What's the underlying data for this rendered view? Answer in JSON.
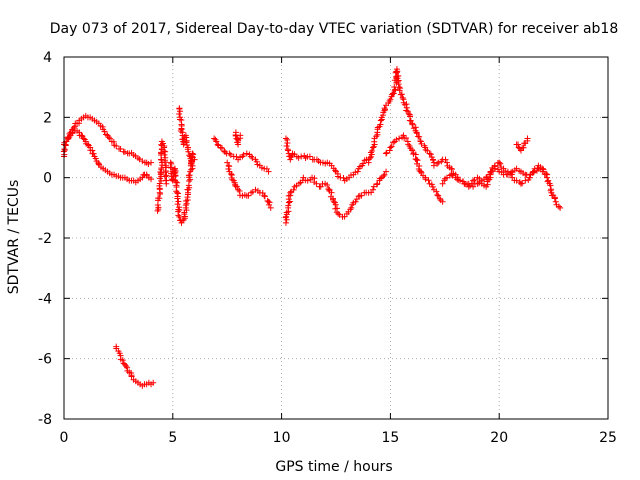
{
  "chart_data": {
    "type": "scatter",
    "title": "Day 073 of 2017, Sidereal Day-to-day VTEC variation (SDTVAR) for receiver ab18",
    "xlabel": "GPS time / hours",
    "ylabel": "SDTVAR / TECUs",
    "xlim": [
      0,
      25
    ],
    "ylim": [
      -8,
      4
    ],
    "xticks": [
      0,
      5,
      10,
      15,
      20,
      25
    ],
    "yticks": [
      -8,
      -6,
      -4,
      -2,
      0,
      2,
      4
    ],
    "grid": true,
    "marker": "+",
    "color": "#ff0000",
    "series": [
      {
        "name": "SDTVAR",
        "segments": [
          {
            "x": [
              0.0,
              0.1,
              0.2,
              0.3,
              0.4,
              0.5,
              0.6,
              0.7,
              0.8,
              0.9,
              1.0,
              1.1,
              1.2,
              1.3,
              1.4,
              1.5
            ],
            "y": [
              0.7,
              1.2,
              1.35,
              1.5,
              1.6,
              1.7,
              1.8,
              1.9,
              1.95,
              2.0,
              2.05,
              2.0,
              2.0,
              1.95,
              1.9,
              1.85
            ]
          },
          {
            "x": [
              0.0,
              0.1,
              0.2,
              0.3,
              0.4,
              0.5,
              0.6,
              0.7,
              0.8,
              0.9,
              1.0,
              1.1,
              1.2,
              1.3,
              1.4,
              1.5,
              1.6,
              1.7,
              1.8,
              1.9,
              2.0,
              2.1,
              2.2,
              2.3,
              2.4,
              2.5,
              2.6,
              2.7,
              2.8,
              2.9,
              3.0,
              3.1,
              3.2,
              3.3,
              3.4,
              3.5,
              3.6,
              3.7,
              3.8,
              3.9,
              4.0
            ],
            "y": [
              1.1,
              1.2,
              1.3,
              1.4,
              1.5,
              1.55,
              1.55,
              1.5,
              1.4,
              1.3,
              1.2,
              1.1,
              1.0,
              0.9,
              0.7,
              0.55,
              0.45,
              0.35,
              0.3,
              0.25,
              0.2,
              0.15,
              0.1,
              0.1,
              0.05,
              0.05,
              0.0,
              0.0,
              0.0,
              -0.05,
              -0.1,
              -0.1,
              -0.1,
              -0.15,
              -0.1,
              -0.05,
              0.0,
              0.1,
              0.1,
              0.0,
              -0.05
            ]
          },
          {
            "x": [
              1.6,
              1.8,
              2.0,
              2.2,
              2.4,
              2.6,
              2.8,
              3.0,
              3.2,
              3.4,
              3.6,
              3.8,
              4.0
            ],
            "y": [
              1.8,
              1.6,
              1.4,
              1.2,
              1.05,
              0.95,
              0.85,
              0.8,
              0.75,
              0.65,
              0.55,
              0.5,
              0.5
            ]
          },
          {
            "x": [
              2.4,
              2.5,
              2.6,
              2.7,
              2.8,
              2.9,
              3.0,
              3.1,
              3.2,
              3.3,
              3.4,
              3.5,
              3.6,
              3.7,
              3.8,
              3.9,
              4.0,
              4.1
            ],
            "y": [
              -5.6,
              -5.75,
              -5.9,
              -6.05,
              -6.2,
              -6.3,
              -6.45,
              -6.55,
              -6.7,
              -6.75,
              -6.8,
              -6.85,
              -6.9,
              -6.85,
              -6.85,
              -6.8,
              -6.85,
              -6.8
            ]
          },
          {
            "x": [
              4.3,
              4.4,
              4.5,
              4.5,
              4.6,
              4.7
            ],
            "y": [
              -1.1,
              -0.5,
              0.5,
              1.2,
              1.0,
              -0.2
            ]
          },
          {
            "x": [
              4.9,
              5.0,
              5.1,
              5.2,
              5.3,
              5.4,
              5.5,
              5.6,
              5.7,
              5.8,
              5.9,
              6.0
            ],
            "y": [
              0.5,
              -0.1,
              0.3,
              -0.5,
              -1.3,
              -1.5,
              -1.4,
              -1.0,
              -0.5,
              0.2,
              0.8,
              0.6
            ]
          },
          {
            "x": [
              5.3,
              5.4,
              5.5,
              5.6,
              5.7,
              5.8,
              5.9
            ],
            "y": [
              2.3,
              1.6,
              1.1,
              1.4,
              1.0,
              0.7,
              0.3
            ]
          },
          {
            "x": [
              6.9,
              7.0,
              7.2,
              7.4,
              7.6,
              7.8,
              8.0,
              8.2,
              8.4,
              8.6,
              8.8,
              9.0,
              9.2,
              9.4
            ],
            "y": [
              1.3,
              1.2,
              1.0,
              0.85,
              0.8,
              0.7,
              0.6,
              0.7,
              0.8,
              0.7,
              0.6,
              0.4,
              0.3,
              0.2
            ]
          },
          {
            "x": [
              7.5,
              7.6,
              7.8,
              8.0,
              8.2,
              8.4,
              8.6,
              8.8,
              9.0,
              9.2,
              9.4,
              9.5
            ],
            "y": [
              0.5,
              0.2,
              -0.1,
              -0.4,
              -0.6,
              -0.6,
              -0.5,
              -0.4,
              -0.5,
              -0.6,
              -0.8,
              -1.0
            ]
          },
          {
            "x": [
              7.9,
              8.0,
              8.1
            ],
            "y": [
              1.5,
              1.1,
              1.4
            ]
          },
          {
            "x": [
              10.2,
              10.3,
              10.4,
              10.5,
              10.7,
              10.9,
              11.1,
              11.3,
              11.5,
              11.7,
              11.9,
              12.1,
              12.3,
              12.5,
              12.7,
              12.9,
              13.1,
              13.3,
              13.5,
              13.7,
              13.9
            ],
            "y": [
              1.3,
              0.9,
              0.6,
              0.8,
              0.7,
              0.7,
              0.65,
              0.7,
              0.6,
              0.55,
              0.5,
              0.5,
              0.4,
              0.2,
              0.0,
              -0.1,
              0.0,
              0.1,
              0.2,
              0.4,
              0.6
            ]
          },
          {
            "x": [
              10.2,
              10.3,
              10.4,
              10.6,
              10.8,
              11.0,
              11.2,
              11.4,
              11.6,
              11.8,
              12.0,
              12.2,
              12.4,
              12.6,
              12.8,
              13.0,
              13.2,
              13.4,
              13.6,
              13.8,
              14.0,
              14.2,
              14.4,
              14.6,
              14.8
            ],
            "y": [
              -1.5,
              -1.0,
              -0.5,
              -0.3,
              -0.2,
              0.0,
              -0.1,
              0.0,
              -0.2,
              -0.3,
              -0.2,
              -0.4,
              -0.8,
              -1.2,
              -1.3,
              -1.2,
              -1.0,
              -0.8,
              -0.6,
              -0.5,
              -0.5,
              -0.4,
              -0.2,
              0.0,
              0.2
            ]
          },
          {
            "x": [
              14.0,
              14.2,
              14.4,
              14.6,
              14.8,
              15.0,
              15.2,
              15.3,
              15.4,
              15.6,
              15.8,
              16.0,
              16.2,
              16.4,
              16.6,
              16.8,
              17.0
            ],
            "y": [
              0.5,
              1.0,
              1.5,
              2.0,
              2.4,
              2.6,
              2.9,
              3.6,
              3.0,
              2.6,
              2.2,
              1.8,
              1.5,
              1.2,
              1.0,
              0.8,
              0.5
            ]
          },
          {
            "x": [
              14.8,
              15.0,
              15.2,
              15.4,
              15.6,
              15.8,
              16.0,
              16.2,
              16.4,
              16.6,
              16.8,
              17.0,
              17.2,
              17.4
            ],
            "y": [
              0.8,
              1.0,
              1.2,
              1.3,
              1.4,
              1.2,
              0.9,
              0.6,
              0.2,
              0.0,
              -0.2,
              -0.4,
              -0.6,
              -0.8
            ]
          },
          {
            "x": [
              17.0,
              17.2,
              17.4,
              17.6,
              17.8,
              18.0,
              18.2,
              18.4,
              18.6,
              18.8,
              19.0,
              19.2,
              19.4,
              19.6,
              19.8,
              20.0,
              20.2,
              20.4,
              20.6,
              20.8,
              21.0,
              21.2,
              21.4,
              21.6,
              21.8,
              22.0,
              22.2,
              22.4,
              22.6,
              22.8
            ],
            "y": [
              0.4,
              0.5,
              0.6,
              0.5,
              0.3,
              0.1,
              -0.1,
              -0.2,
              -0.2,
              -0.1,
              0.0,
              -0.2,
              -0.3,
              0.1,
              0.4,
              0.5,
              0.3,
              0.2,
              0.0,
              -0.1,
              -0.2,
              -0.1,
              0.0,
              0.2,
              0.3,
              0.2,
              0.0,
              -0.5,
              -0.8,
              -1.0
            ]
          },
          {
            "x": [
              17.4,
              17.6,
              17.8,
              18.0,
              18.2,
              18.4,
              18.6,
              18.8,
              19.0,
              19.2,
              19.4,
              19.6,
              19.8,
              20.0,
              20.2,
              20.4,
              20.6,
              20.8,
              21.0,
              21.2,
              21.4,
              21.6,
              21.8,
              22.0,
              22.2
            ],
            "y": [
              -0.2,
              0.0,
              0.1,
              0.0,
              -0.1,
              -0.2,
              -0.3,
              -0.3,
              -0.2,
              -0.1,
              0.0,
              0.2,
              0.3,
              0.2,
              0.1,
              0.1,
              0.2,
              0.3,
              0.2,
              0.1,
              0.0,
              0.2,
              0.4,
              0.3,
              0.1
            ]
          },
          {
            "x": [
              20.8,
              20.9,
              21.0,
              21.3
            ],
            "y": [
              1.1,
              1.0,
              0.9,
              1.3
            ]
          }
        ]
      }
    ]
  }
}
